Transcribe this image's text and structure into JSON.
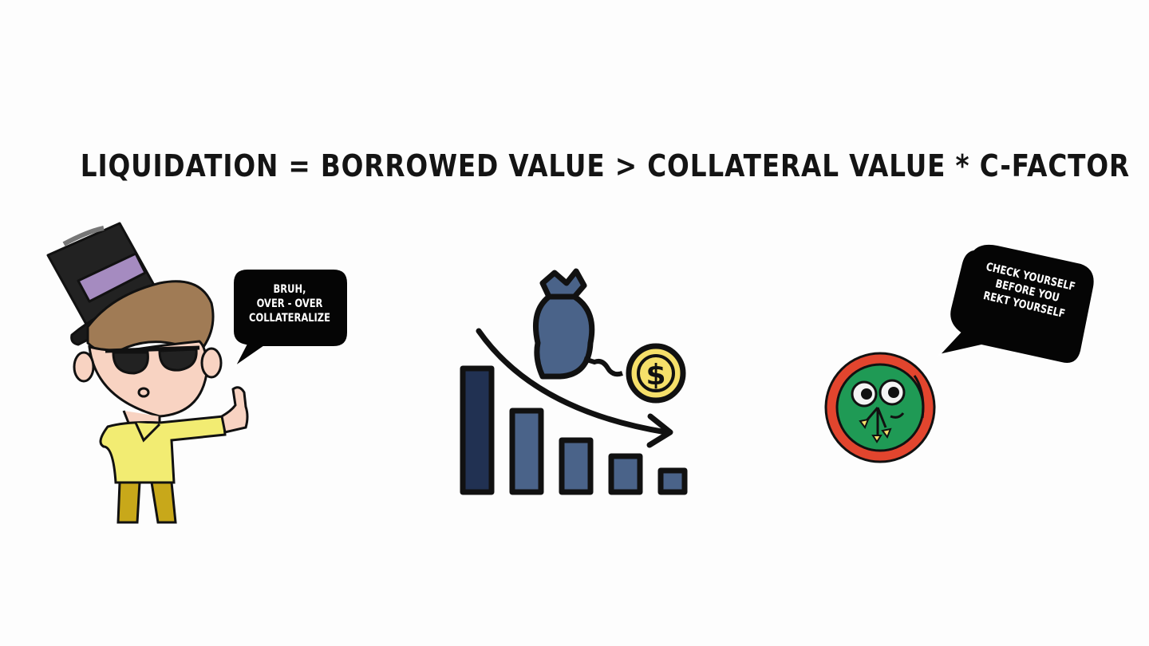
{
  "headline": "LIQUIDATION = BORROWED VALUE > COLLATERAL VALUE * C-FACTOR",
  "left_bubble": {
    "lines": [
      "BRUH,",
      "OVER - OVER",
      "COLLATERALIZE"
    ]
  },
  "right_bubble": {
    "lines": [
      "CHECK YOURSELF",
      "BEFORE YOU",
      "REKT YOURSELF"
    ]
  },
  "icons": {
    "left_character": "top-hat-character-thumbs-up",
    "center_illustration": "declining-bar-chart-money-bag-icon",
    "right_logo": "green-frog-badge-icon"
  },
  "colors": {
    "hat_purple": "#a58bc0",
    "shirt_yellow": "#f2ec72",
    "bar_navy": "#213152",
    "bar_slate": "#4a6389",
    "coin_yellow": "#f6e06a",
    "badge_red": "#e2452e",
    "badge_green": "#1f9a55"
  }
}
